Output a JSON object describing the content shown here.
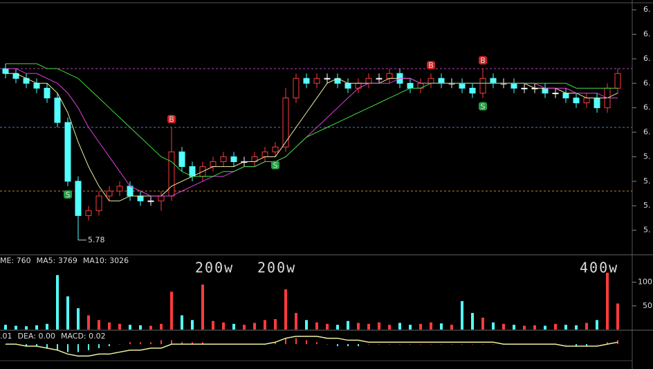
{
  "chart_data": [
    {
      "type": "candlestick",
      "open": [
        6.13,
        6.12,
        6.11,
        6.1,
        6.09,
        6.07,
        6.02,
        5.9,
        5.83,
        5.84,
        5.87,
        5.88,
        5.89,
        5.87,
        5.86,
        5.86,
        5.87,
        5.96,
        5.93,
        5.91,
        5.93,
        5.94,
        5.95,
        5.94,
        5.94,
        5.95,
        5.96,
        5.97,
        6.07,
        6.11,
        6.1,
        6.11,
        6.11,
        6.1,
        6.09,
        6.1,
        6.11,
        6.11,
        6.12,
        6.1,
        6.09,
        6.1,
        6.11,
        6.1,
        6.1,
        6.09,
        6.08,
        6.11,
        6.1,
        6.1,
        6.09,
        6.09,
        6.09,
        6.08,
        6.08,
        6.07,
        6.06,
        6.07,
        6.05,
        6.09
      ],
      "high": [
        6.14,
        6.13,
        6.12,
        6.11,
        6.1,
        6.08,
        6.03,
        5.91,
        5.85,
        5.88,
        5.89,
        5.9,
        5.9,
        5.88,
        5.87,
        5.88,
        6.01,
        5.97,
        5.94,
        5.94,
        5.95,
        5.96,
        5.96,
        5.95,
        5.96,
        5.97,
        5.98,
        6.09,
        6.12,
        6.12,
        6.12,
        6.12,
        6.12,
        6.11,
        6.11,
        6.12,
        6.12,
        6.13,
        6.13,
        6.11,
        6.11,
        6.12,
        6.12,
        6.11,
        6.11,
        6.1,
        6.13,
        6.12,
        6.11,
        6.11,
        6.1,
        6.1,
        6.1,
        6.09,
        6.09,
        6.08,
        6.08,
        6.08,
        6.1,
        6.13
      ],
      "low": [
        6.11,
        6.1,
        6.09,
        6.08,
        6.06,
        6.01,
        5.89,
        5.78,
        5.82,
        5.83,
        5.86,
        5.87,
        5.86,
        5.85,
        5.85,
        5.84,
        5.86,
        5.92,
        5.9,
        5.9,
        5.92,
        5.93,
        5.93,
        5.93,
        5.93,
        5.94,
        5.95,
        5.96,
        6.06,
        6.09,
        6.09,
        6.1,
        6.09,
        6.08,
        6.08,
        6.09,
        6.1,
        6.1,
        6.09,
        6.08,
        6.08,
        6.09,
        6.09,
        6.09,
        6.08,
        6.07,
        6.07,
        6.09,
        6.09,
        6.08,
        6.08,
        6.08,
        6.07,
        6.07,
        6.06,
        6.05,
        6.05,
        6.04,
        6.04,
        6.08
      ],
      "close": [
        6.12,
        6.11,
        6.1,
        6.09,
        6.07,
        6.02,
        5.9,
        5.83,
        5.84,
        5.87,
        5.88,
        5.89,
        5.87,
        5.86,
        5.86,
        5.87,
        5.96,
        5.93,
        5.91,
        5.93,
        5.94,
        5.95,
        5.94,
        5.94,
        5.95,
        5.96,
        5.97,
        6.07,
        6.11,
        6.1,
        6.11,
        6.11,
        6.1,
        6.09,
        6.1,
        6.11,
        6.11,
        6.12,
        6.1,
        6.09,
        6.1,
        6.11,
        6.1,
        6.1,
        6.09,
        6.08,
        6.11,
        6.1,
        6.1,
        6.09,
        6.09,
        6.09,
        6.08,
        6.08,
        6.07,
        6.06,
        6.07,
        6.05,
        6.09,
        6.12
      ],
      "up_color": "#ff3c3c",
      "down_color": "#54ffff",
      "flat_color": "#ffffff",
      "series": [
        {
          "color": "#f0f0a0",
          "values": [
            6.12,
            6.12,
            6.11,
            6.1,
            6.1,
            6.08,
            6.04,
            5.98,
            5.93,
            5.89,
            5.86,
            5.86,
            5.87,
            5.87,
            5.87,
            5.87,
            5.89,
            5.9,
            5.91,
            5.92,
            5.93,
            5.93,
            5.93,
            5.94,
            5.94,
            5.95,
            5.95,
            5.98,
            6.01,
            6.04,
            6.07,
            6.1,
            6.11,
            6.1,
            6.1,
            6.1,
            6.1,
            6.11,
            6.11,
            6.11,
            6.1,
            6.1,
            6.1,
            6.1,
            6.1,
            6.1,
            6.1,
            6.1,
            6.1,
            6.1,
            6.1,
            6.09,
            6.09,
            6.09,
            6.08,
            6.08,
            6.07,
            6.07,
            6.07,
            6.08
          ]
        },
        {
          "color": "#e040e0",
          "values": [
            6.13,
            6.13,
            6.12,
            6.12,
            6.11,
            6.1,
            6.08,
            6.05,
            6.01,
            5.98,
            5.95,
            5.92,
            5.89,
            5.88,
            5.87,
            5.87,
            5.87,
            5.88,
            5.89,
            5.9,
            5.91,
            5.91,
            5.92,
            5.93,
            5.93,
            5.94,
            5.94,
            5.95,
            5.97,
            5.99,
            6.01,
            6.03,
            6.05,
            6.07,
            6.09,
            6.1,
            6.1,
            6.1,
            6.11,
            6.11,
            6.1,
            6.1,
            6.1,
            6.1,
            6.1,
            6.1,
            6.1,
            6.1,
            6.1,
            6.1,
            6.1,
            6.1,
            6.09,
            6.09,
            6.09,
            6.08,
            6.08,
            6.08,
            6.07,
            6.07
          ]
        },
        {
          "color": "#40e040",
          "values": [
            6.14,
            6.14,
            6.14,
            6.14,
            6.13,
            6.13,
            6.12,
            6.11,
            6.09,
            6.07,
            6.05,
            6.03,
            6.01,
            5.99,
            5.97,
            5.95,
            5.94,
            5.92,
            5.91,
            5.91,
            5.91,
            5.92,
            5.92,
            5.93,
            5.93,
            5.94,
            5.94,
            5.95,
            5.97,
            5.99,
            6.0,
            6.01,
            6.02,
            6.03,
            6.04,
            6.05,
            6.06,
            6.07,
            6.08,
            6.09,
            6.09,
            6.1,
            6.1,
            6.1,
            6.1,
            6.1,
            6.1,
            6.1,
            6.1,
            6.1,
            6.1,
            6.1,
            6.1,
            6.1,
            6.1,
            6.09,
            6.09,
            6.09,
            6.09,
            6.09
          ]
        }
      ],
      "hlines": [
        {
          "value": 6.13,
          "color": "#c040c0"
        },
        {
          "value": 6.01,
          "color": "#4a7fd0"
        },
        {
          "value": 5.88,
          "color": "#d08030"
        }
      ],
      "low_annotation": 5.78,
      "signals": [
        {
          "index": 6,
          "label": "S"
        },
        {
          "index": 16,
          "label": "B"
        },
        {
          "index": 26,
          "label": "S"
        },
        {
          "index": 41,
          "label": "B"
        },
        {
          "index": 46,
          "label": "B"
        },
        {
          "index": 46,
          "label": "S"
        }
      ],
      "ylim": [
        5.75,
        6.27
      ],
      "yticks": [
        {
          "value": 6.25,
          "label": "6."
        },
        {
          "value": 6.2,
          "label": "6."
        },
        {
          "value": 6.15,
          "label": "6."
        },
        {
          "value": 6.1,
          "label": "6."
        },
        {
          "value": 6.05,
          "label": "6."
        },
        {
          "value": 6.0,
          "label": "6."
        },
        {
          "value": 5.95,
          "label": "5."
        },
        {
          "value": 5.9,
          "label": "5."
        },
        {
          "value": 5.85,
          "label": "5."
        },
        {
          "value": 5.8,
          "label": "5."
        }
      ]
    },
    {
      "type": "bar",
      "legend": [
        {
          "text": "ME: 760",
          "color": "#ffffff"
        },
        {
          "text": "MA5: 3769",
          "color": "#ffffff"
        },
        {
          "text": "MA10: 3026",
          "color": "#e8e870"
        }
      ],
      "annotations": [
        "200w",
        "200w",
        "400w"
      ],
      "annotation_color": "#ff2020",
      "values": [
        10,
        8,
        7,
        9,
        12,
        115,
        70,
        45,
        30,
        20,
        15,
        12,
        10,
        9,
        8,
        12,
        80,
        30,
        20,
        95,
        18,
        15,
        12,
        10,
        14,
        20,
        22,
        85,
        35,
        20,
        15,
        12,
        10,
        18,
        14,
        12,
        15,
        10,
        14,
        10,
        12,
        15,
        13,
        10,
        60,
        35,
        25,
        15,
        12,
        10,
        8,
        9,
        8,
        12,
        10,
        9,
        14,
        20,
        120,
        55
      ],
      "ylim": [
        0,
        155
      ],
      "yticks": [
        50,
        100
      ]
    },
    {
      "type": "macd",
      "legend": [
        {
          "text": ".01",
          "color": "#ffffff"
        },
        {
          "text": "DEA: 0.00",
          "color": "#e8e870"
        },
        {
          "text": "MACD: 0.02",
          "color": "#e040e0"
        }
      ],
      "values": [
        0,
        0,
        -0.01,
        -0.01,
        -0.02,
        -0.03,
        -0.04,
        -0.04,
        -0.03,
        -0.02,
        -0.01,
        0,
        0.01,
        0.01,
        0.01,
        0.02,
        0.02,
        0.01,
        0.01,
        0.01,
        0,
        0,
        0,
        0,
        0,
        0,
        0.01,
        0.03,
        0.03,
        0.02,
        0.01,
        0,
        -0.01,
        -0.01,
        -0.01,
        0,
        0,
        0,
        0,
        0,
        0,
        0,
        0,
        0,
        0,
        0,
        0,
        0,
        0,
        0,
        0,
        0,
        0,
        0,
        0,
        -0.01,
        -0.01,
        0,
        0.01,
        0.02
      ],
      "series": [
        {
          "color": "#f0f0a0",
          "values": [
            0,
            0,
            -0.01,
            -0.01,
            -0.02,
            -0.03,
            -0.05,
            -0.06,
            -0.06,
            -0.05,
            -0.05,
            -0.04,
            -0.03,
            -0.03,
            -0.02,
            -0.02,
            0,
            0,
            0,
            0,
            0,
            0,
            0,
            0,
            0,
            0,
            0.01,
            0.03,
            0.04,
            0.04,
            0.04,
            0.03,
            0.03,
            0.02,
            0.02,
            0.01,
            0.01,
            0.01,
            0.01,
            0.01,
            0.01,
            0.01,
            0.01,
            0.01,
            0.01,
            0.01,
            0.01,
            0.01,
            0,
            0,
            0,
            0,
            0,
            0,
            -0.01,
            -0.01,
            -0.01,
            -0.01,
            0,
            0.01
          ]
        }
      ],
      "ylim": [
        -0.08,
        0.06
      ]
    }
  ]
}
